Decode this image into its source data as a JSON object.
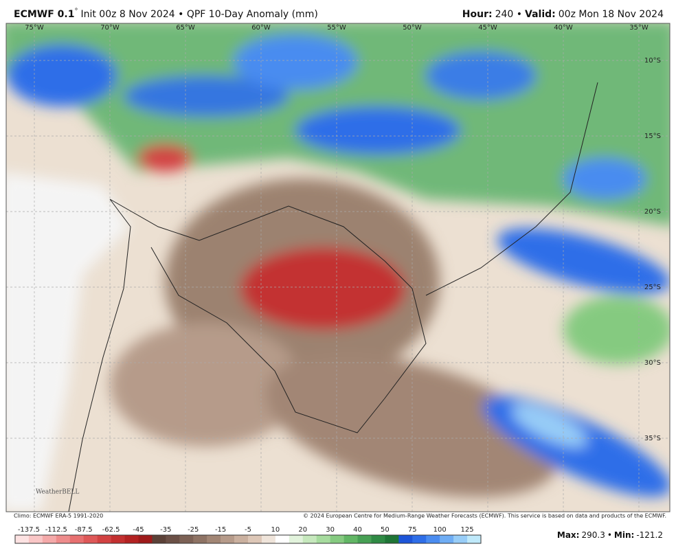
{
  "header": {
    "model": "ECMWF 0.1",
    "deg": "°",
    "init": "Init 00z 8 Nov 2024 • QPF 10-Day Anomaly (mm)",
    "hour_label": "Hour:",
    "hour": "240 •",
    "valid_label": "Valid:",
    "valid": "00z Mon 18 Nov 2024"
  },
  "map": {
    "longitudes": [
      "75°W",
      "70°W",
      "65°W",
      "60°W",
      "55°W",
      "50°W",
      "45°W",
      "40°W",
      "35°W"
    ],
    "latitudes": [
      "10°S",
      "15°S",
      "20°S",
      "25°S",
      "30°S",
      "35°S"
    ],
    "logo": "WeatherBELL"
  },
  "footer": {
    "climo": "Climo: ECMWF ERA-5 1991-2020",
    "copyright": "© 2024 European Centre for Medium-Range Weather Forecasts (ECMWF). This service is based on data and products of the ECMWF.",
    "max_label": "Max:",
    "max": 290.3,
    "sep": "•",
    "min_label": "Min:",
    "min": -121.2
  },
  "colorbar": {
    "labels": [
      -137.5,
      -112.5,
      -87.5,
      -62.5,
      -45,
      -35,
      -25,
      -15,
      -5,
      10,
      20,
      30,
      40,
      50,
      75,
      100,
      125
    ],
    "colors": [
      "#fde2e2",
      "#f9c6c6",
      "#f4a9a9",
      "#ee8c8c",
      "#e77070",
      "#de5858",
      "#d24242",
      "#c33030",
      "#b32222",
      "#9e1a1a",
      "#5b4137",
      "#6b5046",
      "#7c6155",
      "#8e7364",
      "#a28675",
      "#b69b8a",
      "#cab09f",
      "#ddc7b7",
      "#efe4da",
      "#ffffff",
      "#e2f3dc",
      "#c6e8bd",
      "#a6db9e",
      "#85ca80",
      "#62b665",
      "#47a054",
      "#2f8a44",
      "#1f7536",
      "#1d55d8",
      "#2e6ee8",
      "#4a8cf0",
      "#6fadf4",
      "#98cdf7",
      "#bfe9fa"
    ]
  }
}
